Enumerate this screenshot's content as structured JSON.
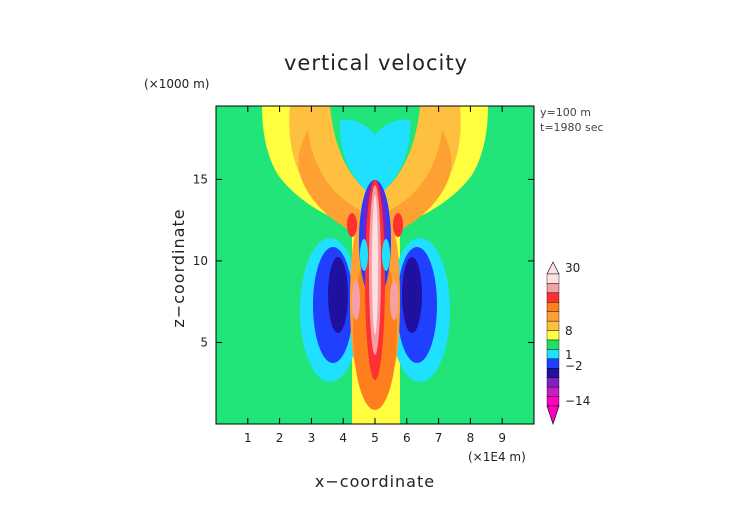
{
  "chart_data": {
    "type": "heatmap",
    "title": "vertical velocity",
    "xlabel": "x−coordinate",
    "ylabel": "z−coordinate",
    "x_unit": "(×1E4 m)",
    "y_unit": "(×1000 m)",
    "xlim": [
      0,
      10
    ],
    "ylim": [
      0,
      19.5
    ],
    "xticks": [
      "1",
      "2",
      "3",
      "4",
      "5",
      "6",
      "7",
      "8",
      "9"
    ],
    "yticks": [
      "5",
      "10",
      "15"
    ],
    "annotations": [
      "y=100 m",
      "t=1980 sec"
    ],
    "colorbar": {
      "labels": [
        "30",
        "8",
        "1",
        "−2",
        "−14"
      ],
      "colors": [
        "#ffe0e0",
        "#f4a0a8",
        "#ff3030",
        "#ff7f1f",
        "#ffa033",
        "#ffc040",
        "#ffff40",
        "#20e060",
        "#20e0ff",
        "#2040ff",
        "#2010a0",
        "#8020c0",
        "#c020c0",
        "#ff00c0"
      ]
    },
    "background_color": "#22e57a"
  }
}
